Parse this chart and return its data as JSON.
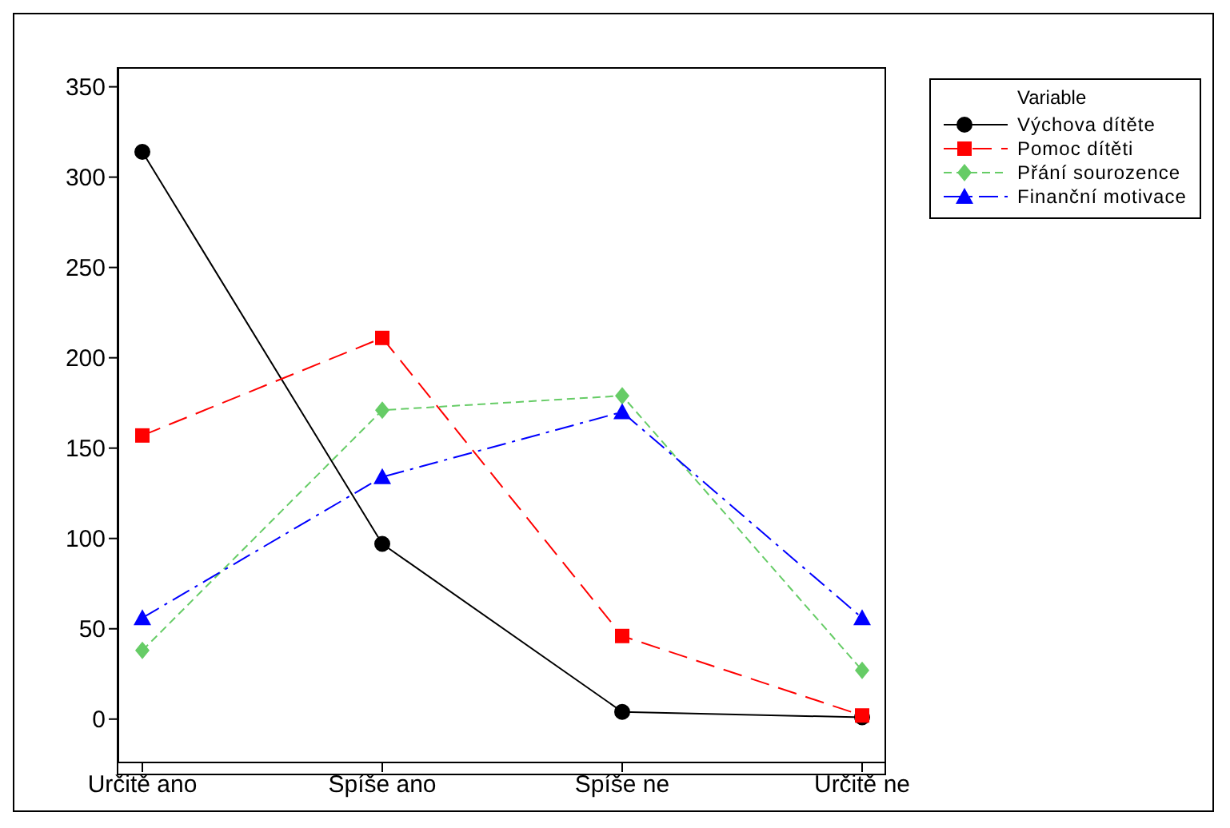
{
  "chart_data": {
    "type": "line",
    "categories": [
      "Určitě ano",
      "Spíše ano",
      "Spíše ne",
      "Určitě ne"
    ],
    "legend_title": "Variable",
    "legend": "top right",
    "grid": false,
    "ylim": [
      -24,
      360
    ],
    "yticks": [
      0,
      50,
      100,
      150,
      200,
      250,
      300,
      350
    ],
    "series": [
      {
        "name": "Výchova dítěte",
        "color": "#000000",
        "marker": "circle",
        "line_style": "solid",
        "values": [
          314,
          97,
          4,
          1
        ]
      },
      {
        "name": "Pomoc dítěti",
        "color": "#ff0000",
        "marker": "square",
        "line_style": "dashed",
        "values": [
          157,
          211,
          46,
          2
        ]
      },
      {
        "name": "Přání sourozence",
        "color": "#66cc66",
        "marker": "diamond",
        "line_style": "dotted",
        "values": [
          38,
          171,
          179,
          27
        ]
      },
      {
        "name": "Finanční motivace",
        "color": "#0000ff",
        "marker": "triangle",
        "line_style": "dashdot",
        "values": [
          56,
          134,
          170,
          56
        ]
      }
    ]
  }
}
